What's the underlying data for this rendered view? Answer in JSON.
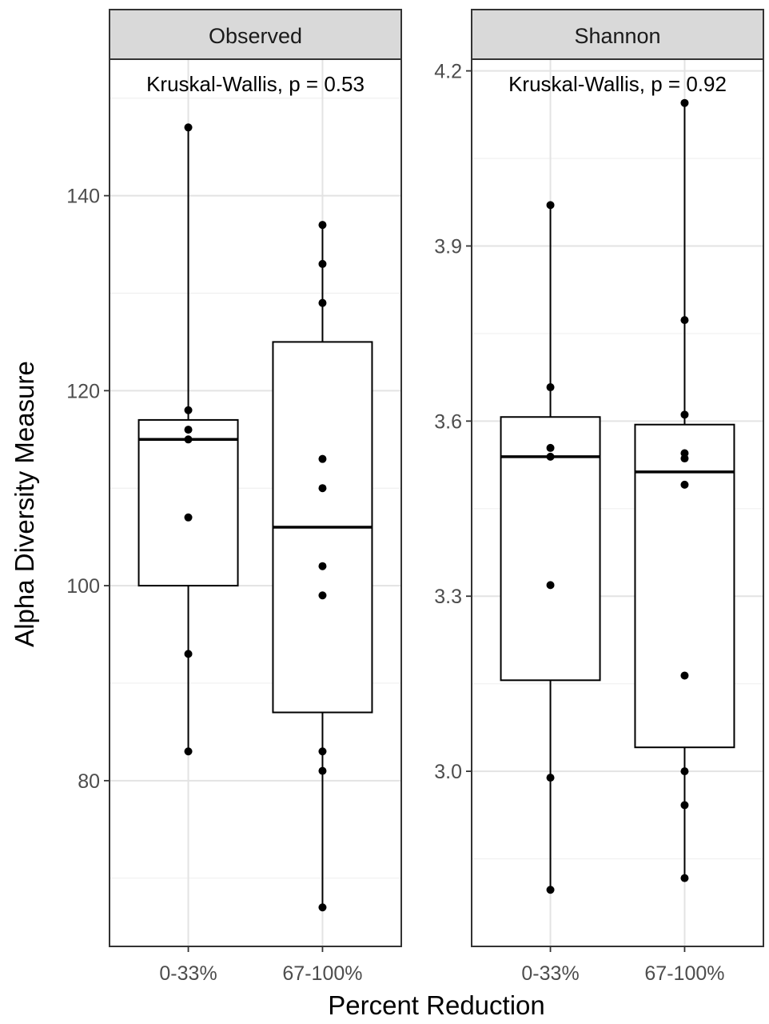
{
  "chart_data": {
    "type": "boxplot",
    "xlabel": "Percent Reduction",
    "ylabel": "Alpha Diversity Measure",
    "categories": [
      "0-33%",
      "67-100%"
    ],
    "grid": true,
    "panels": [
      {
        "strip": "Observed",
        "annotation": "Kruskal-Wallis, p = 0.53",
        "ylim": [
          63,
          154
        ],
        "yticks": [
          80,
          100,
          120,
          140
        ],
        "ytick_labels": [
          "80",
          "100",
          "120",
          "140"
        ],
        "boxes": [
          {
            "category": "0-33%",
            "min": 83,
            "q1": 100,
            "median": 115,
            "q3": 117,
            "max": 147,
            "points": [
              147,
              118,
              116,
              115,
              107,
              93,
              83
            ]
          },
          {
            "category": "67-100%",
            "min": 67,
            "q1": 87,
            "median": 106,
            "q3": 125,
            "max": 137,
            "points": [
              137,
              133,
              129,
              113,
              110,
              102,
              99,
              83,
              81,
              67
            ]
          }
        ]
      },
      {
        "strip": "Shannon",
        "annotation": "Kruskal-Wallis, p = 0.92",
        "ylim": [
          2.7,
          4.22
        ],
        "yticks": [
          3.0,
          3.3,
          3.6,
          3.9,
          4.2
        ],
        "ytick_labels": [
          "3.0",
          "3.3",
          "3.6",
          "3.9",
          "4.2"
        ],
        "boxes": [
          {
            "category": "0-33%",
            "min": 2.797,
            "q1": 3.156,
            "median": 3.539,
            "q3": 3.607,
            "max": 3.97,
            "points": [
              3.97,
              3.658,
              3.554,
              3.539,
              3.319,
              2.989,
              2.797
            ]
          },
          {
            "category": "67-100%",
            "min": 2.817,
            "q1": 3.041,
            "median": 3.513,
            "q3": 3.594,
            "max": 4.145,
            "points": [
              4.145,
              3.773,
              3.611,
              3.545,
              3.536,
              3.491,
              3.164,
              3.0,
              2.942,
              2.817
            ]
          }
        ]
      }
    ]
  }
}
